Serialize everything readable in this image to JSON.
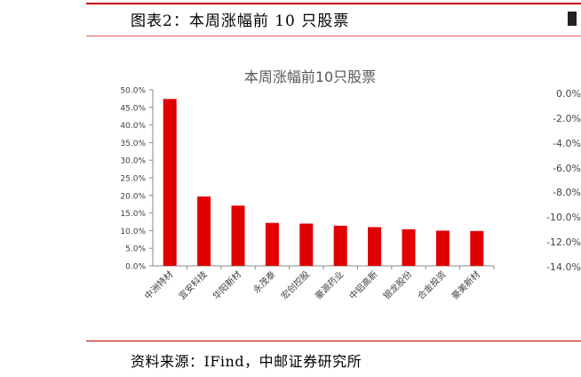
{
  "header": {
    "figure_title": "图表2：本周涨幅前 10 只股票"
  },
  "footer": {
    "source": "资料来源：IFind，中邮证券研究所"
  },
  "chart_data": [
    {
      "type": "bar",
      "title": "本周涨幅前10只股票",
      "categories": [
        "中洲特材",
        "宜安科技",
        "华阳新材",
        "永茂泰",
        "宏创控股",
        "豪源药业",
        "中铝高新",
        "银龙股份",
        "合金投资",
        "豪美新材"
      ],
      "values": [
        47.4,
        19.7,
        17.1,
        12.2,
        12.0,
        11.4,
        11.0,
        10.4,
        10.0,
        9.9
      ],
      "ylim": [
        0,
        50
      ],
      "yticks": [
        "0.0%",
        "5.0%",
        "10.0%",
        "15.0%",
        "20.0%",
        "25.0%",
        "30.0%",
        "35.0%",
        "40.0%",
        "45.0%",
        "50.0%"
      ],
      "bar_color": "#e00000",
      "grid": false
    },
    {
      "type": "bar",
      "note_visible": "right chart, partially cropped — only y tick labels visible",
      "yticks": [
        "0.0%",
        "-2.0%",
        "-4.0%",
        "-6.0%",
        "-8.0%",
        "-10.0%",
        "-12.0%",
        "-14.0%"
      ],
      "ylim": [
        -14,
        0
      ]
    }
  ]
}
